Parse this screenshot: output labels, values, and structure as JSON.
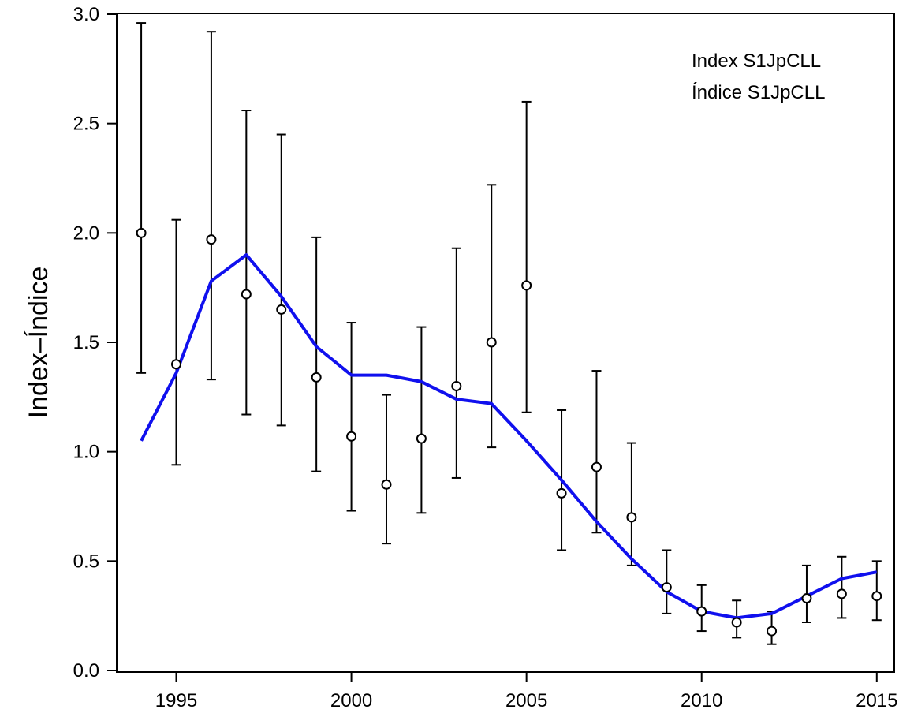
{
  "chart_data": {
    "type": "scatter",
    "ylabel": "Index–Índice",
    "xlabel": "",
    "annotations": [
      "Index S1JpCLL",
      "Índice S1JpCLL"
    ],
    "legend_position": "top-right",
    "xlim": [
      1993.3,
      2015.5
    ],
    "ylim": [
      0.0,
      3.0
    ],
    "x_ticks": [
      1995,
      2000,
      2005,
      2010,
      2015
    ],
    "y_ticks": [
      0.0,
      0.5,
      1.0,
      1.5,
      2.0,
      2.5,
      3.0
    ],
    "y_tick_labels": [
      "0.0",
      "0.5",
      "1.0",
      "1.5",
      "2.0",
      "2.5",
      "3.0"
    ],
    "grid": false,
    "colors": {
      "fit_line": "#1010ee",
      "points": "#000000",
      "error_bars": "#000000"
    },
    "series": [
      {
        "type": "scatter_with_error_bars",
        "x": [
          1994,
          1995,
          1996,
          1997,
          1998,
          1999,
          2000,
          2001,
          2002,
          2003,
          2004,
          2005,
          2006,
          2007,
          2008,
          2009,
          2010,
          2011,
          2012,
          2013,
          2014,
          2015
        ],
        "y": [
          2.0,
          1.4,
          1.97,
          1.72,
          1.65,
          1.34,
          1.07,
          0.85,
          1.06,
          1.3,
          1.5,
          1.76,
          0.81,
          0.93,
          0.7,
          0.38,
          0.27,
          0.22,
          0.18,
          0.33,
          0.35,
          0.34
        ],
        "lower": [
          1.36,
          0.94,
          1.33,
          1.17,
          1.12,
          0.91,
          0.73,
          0.58,
          0.72,
          0.88,
          1.02,
          1.18,
          0.55,
          0.63,
          0.48,
          0.26,
          0.18,
          0.15,
          0.12,
          0.22,
          0.24,
          0.23
        ],
        "upper": [
          2.96,
          2.06,
          2.92,
          2.56,
          2.45,
          1.98,
          1.59,
          1.26,
          1.57,
          1.93,
          2.22,
          2.6,
          1.19,
          1.37,
          1.04,
          0.55,
          0.39,
          0.32,
          0.27,
          0.48,
          0.52,
          0.5
        ]
      },
      {
        "type": "line",
        "x": [
          1994,
          1995,
          1996,
          1997,
          1998,
          1999,
          2000,
          2001,
          2002,
          2003,
          2004,
          2005,
          2006,
          2007,
          2008,
          2009,
          2010,
          2011,
          2012,
          2013,
          2014,
          2015
        ],
        "y": [
          1.05,
          1.36,
          1.78,
          1.9,
          1.71,
          1.48,
          1.35,
          1.35,
          1.32,
          1.24,
          1.22,
          1.05,
          0.87,
          0.68,
          0.51,
          0.36,
          0.27,
          0.24,
          0.26,
          0.34,
          0.42,
          0.45
        ]
      }
    ]
  }
}
